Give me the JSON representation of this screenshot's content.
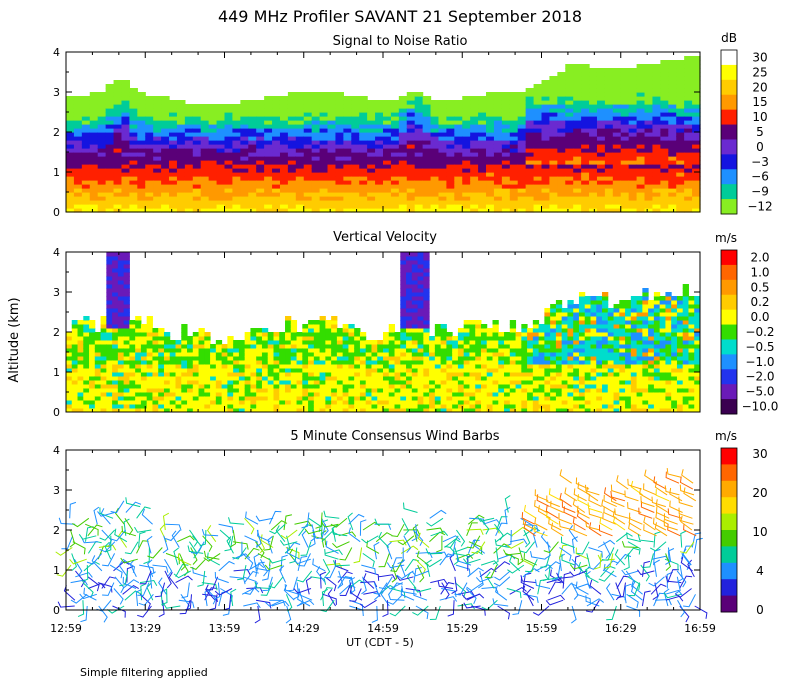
{
  "chart_data": {
    "title": "449 MHz Profiler SAVANT 21 September 2018",
    "ylabel": "Altitude (km)",
    "xlabel": "UT  (CDT - 5)",
    "x_ticks": [
      "12:59",
      "13:29",
      "13:59",
      "14:29",
      "14:59",
      "15:29",
      "15:59",
      "16:29",
      "16:59"
    ],
    "y_ticks": [
      "0",
      "1",
      "2",
      "3",
      "4"
    ],
    "ylim": [
      0,
      4
    ],
    "footnote": "Simple filtering applied",
    "panels": [
      {
        "type": "heatmap",
        "title": "Signal to Noise Ratio",
        "units": "dB",
        "colorbar_labels": [
          "30",
          "25",
          "20",
          "15",
          "10",
          "5",
          "0",
          "−3",
          "−6",
          "−9",
          "−12"
        ],
        "colors": [
          "#ffffff",
          "#ffff00",
          "#ffcc00",
          "#ff9900",
          "#ff2000",
          "#5a0078",
          "#6a2ad0",
          "#1414e0",
          "#1e90ff",
          "#00cc99",
          "#88ee22"
        ]
      },
      {
        "type": "heatmap",
        "title": "Vertical Velocity",
        "units": "m/s",
        "colorbar_labels": [
          "2.0",
          "1.0",
          "0.5",
          "0.2",
          "0.0",
          "−0.2",
          "−0.5",
          "−1.0",
          "−2.0",
          "−5.0",
          "−10.0"
        ],
        "colors": [
          "#ff0000",
          "#ff6600",
          "#ff9900",
          "#ffcc00",
          "#ffff00",
          "#33dd00",
          "#00ddcc",
          "#1e90ff",
          "#2233ee",
          "#6a1ab8",
          "#3a0050"
        ]
      },
      {
        "type": "wind_barbs",
        "title": "5 Minute Consensus Wind Barbs",
        "units": "m/s",
        "colorbar_labels": [
          "30",
          "20",
          "10",
          "4",
          "0"
        ],
        "colors": [
          "#ff0000",
          "#ff6600",
          "#ffaa00",
          "#ffdd00",
          "#aaee00",
          "#44cc00",
          "#00cc99",
          "#1e90ff",
          "#2222dd",
          "#5a0078"
        ]
      }
    ]
  }
}
